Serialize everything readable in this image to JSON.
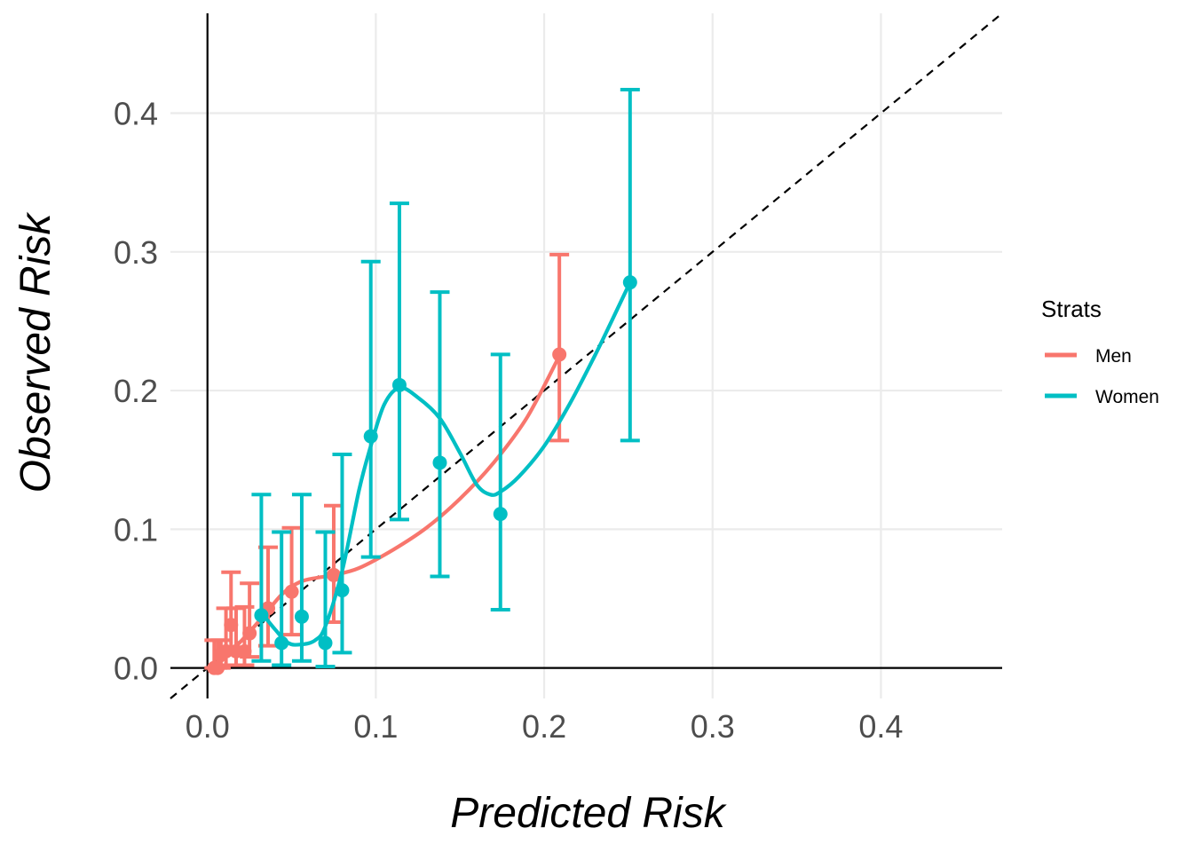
{
  "chart_data": {
    "type": "scatter",
    "title": "",
    "xlabel": "Predicted Risk",
    "ylabel": "Observed Risk",
    "xlim": [
      -0.022,
      0.472
    ],
    "ylim": [
      -0.022,
      0.472
    ],
    "x_ticks": [
      0.0,
      0.1,
      0.2,
      0.3,
      0.4
    ],
    "y_ticks": [
      0.0,
      0.1,
      0.2,
      0.3,
      0.4
    ],
    "x_tick_labels": [
      "0.0",
      "0.1",
      "0.2",
      "0.3",
      "0.4"
    ],
    "y_tick_labels": [
      "0.0",
      "0.1",
      "0.2",
      "0.3",
      "0.4"
    ],
    "grid": true,
    "reference_line": {
      "type": "identity",
      "style": "dashed",
      "color": "#000000"
    },
    "legend": {
      "title": "Strats",
      "position": "right"
    },
    "series": [
      {
        "name": "Men",
        "color": "#F8766D",
        "points": [
          {
            "x": 0.004,
            "y": 0.0,
            "lo": 0.0,
            "hi": 0.02
          },
          {
            "x": 0.006,
            "y": 0.0,
            "lo": 0.0,
            "hi": 0.02
          },
          {
            "x": 0.008,
            "y": 0.01,
            "lo": 0.0,
            "hi": 0.02
          },
          {
            "x": 0.011,
            "y": 0.012,
            "lo": 0.002,
            "hi": 0.043
          },
          {
            "x": 0.014,
            "y": 0.031,
            "lo": 0.01,
            "hi": 0.069
          },
          {
            "x": 0.017,
            "y": 0.012,
            "lo": 0.002,
            "hi": 0.043
          },
          {
            "x": 0.022,
            "y": 0.012,
            "lo": 0.002,
            "hi": 0.044
          },
          {
            "x": 0.025,
            "y": 0.025,
            "lo": 0.008,
            "hi": 0.061
          },
          {
            "x": 0.036,
            "y": 0.043,
            "lo": 0.016,
            "hi": 0.087
          },
          {
            "x": 0.05,
            "y": 0.055,
            "lo": 0.024,
            "hi": 0.101
          },
          {
            "x": 0.075,
            "y": 0.067,
            "lo": 0.033,
            "hi": 0.117
          },
          {
            "x": 0.209,
            "y": 0.226,
            "lo": 0.164,
            "hi": 0.298
          }
        ],
        "smooth": [
          [
            0.004,
            0.0
          ],
          [
            0.015,
            0.013
          ],
          [
            0.025,
            0.026
          ],
          [
            0.035,
            0.04
          ],
          [
            0.045,
            0.054
          ],
          [
            0.055,
            0.062
          ],
          [
            0.065,
            0.065
          ],
          [
            0.075,
            0.067
          ],
          [
            0.09,
            0.072
          ],
          [
            0.11,
            0.085
          ],
          [
            0.13,
            0.101
          ],
          [
            0.15,
            0.122
          ],
          [
            0.17,
            0.148
          ],
          [
            0.19,
            0.181
          ],
          [
            0.209,
            0.225
          ]
        ]
      },
      {
        "name": "Women",
        "color": "#00BFC4",
        "points": [
          {
            "x": 0.032,
            "y": 0.038,
            "lo": 0.005,
            "hi": 0.125
          },
          {
            "x": 0.044,
            "y": 0.018,
            "lo": 0.002,
            "hi": 0.098
          },
          {
            "x": 0.056,
            "y": 0.037,
            "lo": 0.005,
            "hi": 0.125
          },
          {
            "x": 0.07,
            "y": 0.018,
            "lo": 0.001,
            "hi": 0.098
          },
          {
            "x": 0.08,
            "y": 0.056,
            "lo": 0.011,
            "hi": 0.154
          },
          {
            "x": 0.097,
            "y": 0.167,
            "lo": 0.08,
            "hi": 0.293
          },
          {
            "x": 0.114,
            "y": 0.204,
            "lo": 0.107,
            "hi": 0.335
          },
          {
            "x": 0.138,
            "y": 0.148,
            "lo": 0.066,
            "hi": 0.271
          },
          {
            "x": 0.174,
            "y": 0.111,
            "lo": 0.042,
            "hi": 0.226
          },
          {
            "x": 0.251,
            "y": 0.278,
            "lo": 0.164,
            "hi": 0.417
          }
        ],
        "smooth": [
          [
            0.032,
            0.04
          ],
          [
            0.04,
            0.028
          ],
          [
            0.048,
            0.018
          ],
          [
            0.056,
            0.017
          ],
          [
            0.064,
            0.02
          ],
          [
            0.07,
            0.03
          ],
          [
            0.08,
            0.07
          ],
          [
            0.09,
            0.128
          ],
          [
            0.097,
            0.16
          ],
          [
            0.105,
            0.19
          ],
          [
            0.114,
            0.202
          ],
          [
            0.125,
            0.195
          ],
          [
            0.138,
            0.18
          ],
          [
            0.15,
            0.155
          ],
          [
            0.16,
            0.132
          ],
          [
            0.168,
            0.125
          ],
          [
            0.174,
            0.127
          ],
          [
            0.185,
            0.138
          ],
          [
            0.2,
            0.16
          ],
          [
            0.215,
            0.19
          ],
          [
            0.23,
            0.225
          ],
          [
            0.24,
            0.25
          ],
          [
            0.251,
            0.278
          ]
        ]
      }
    ]
  }
}
